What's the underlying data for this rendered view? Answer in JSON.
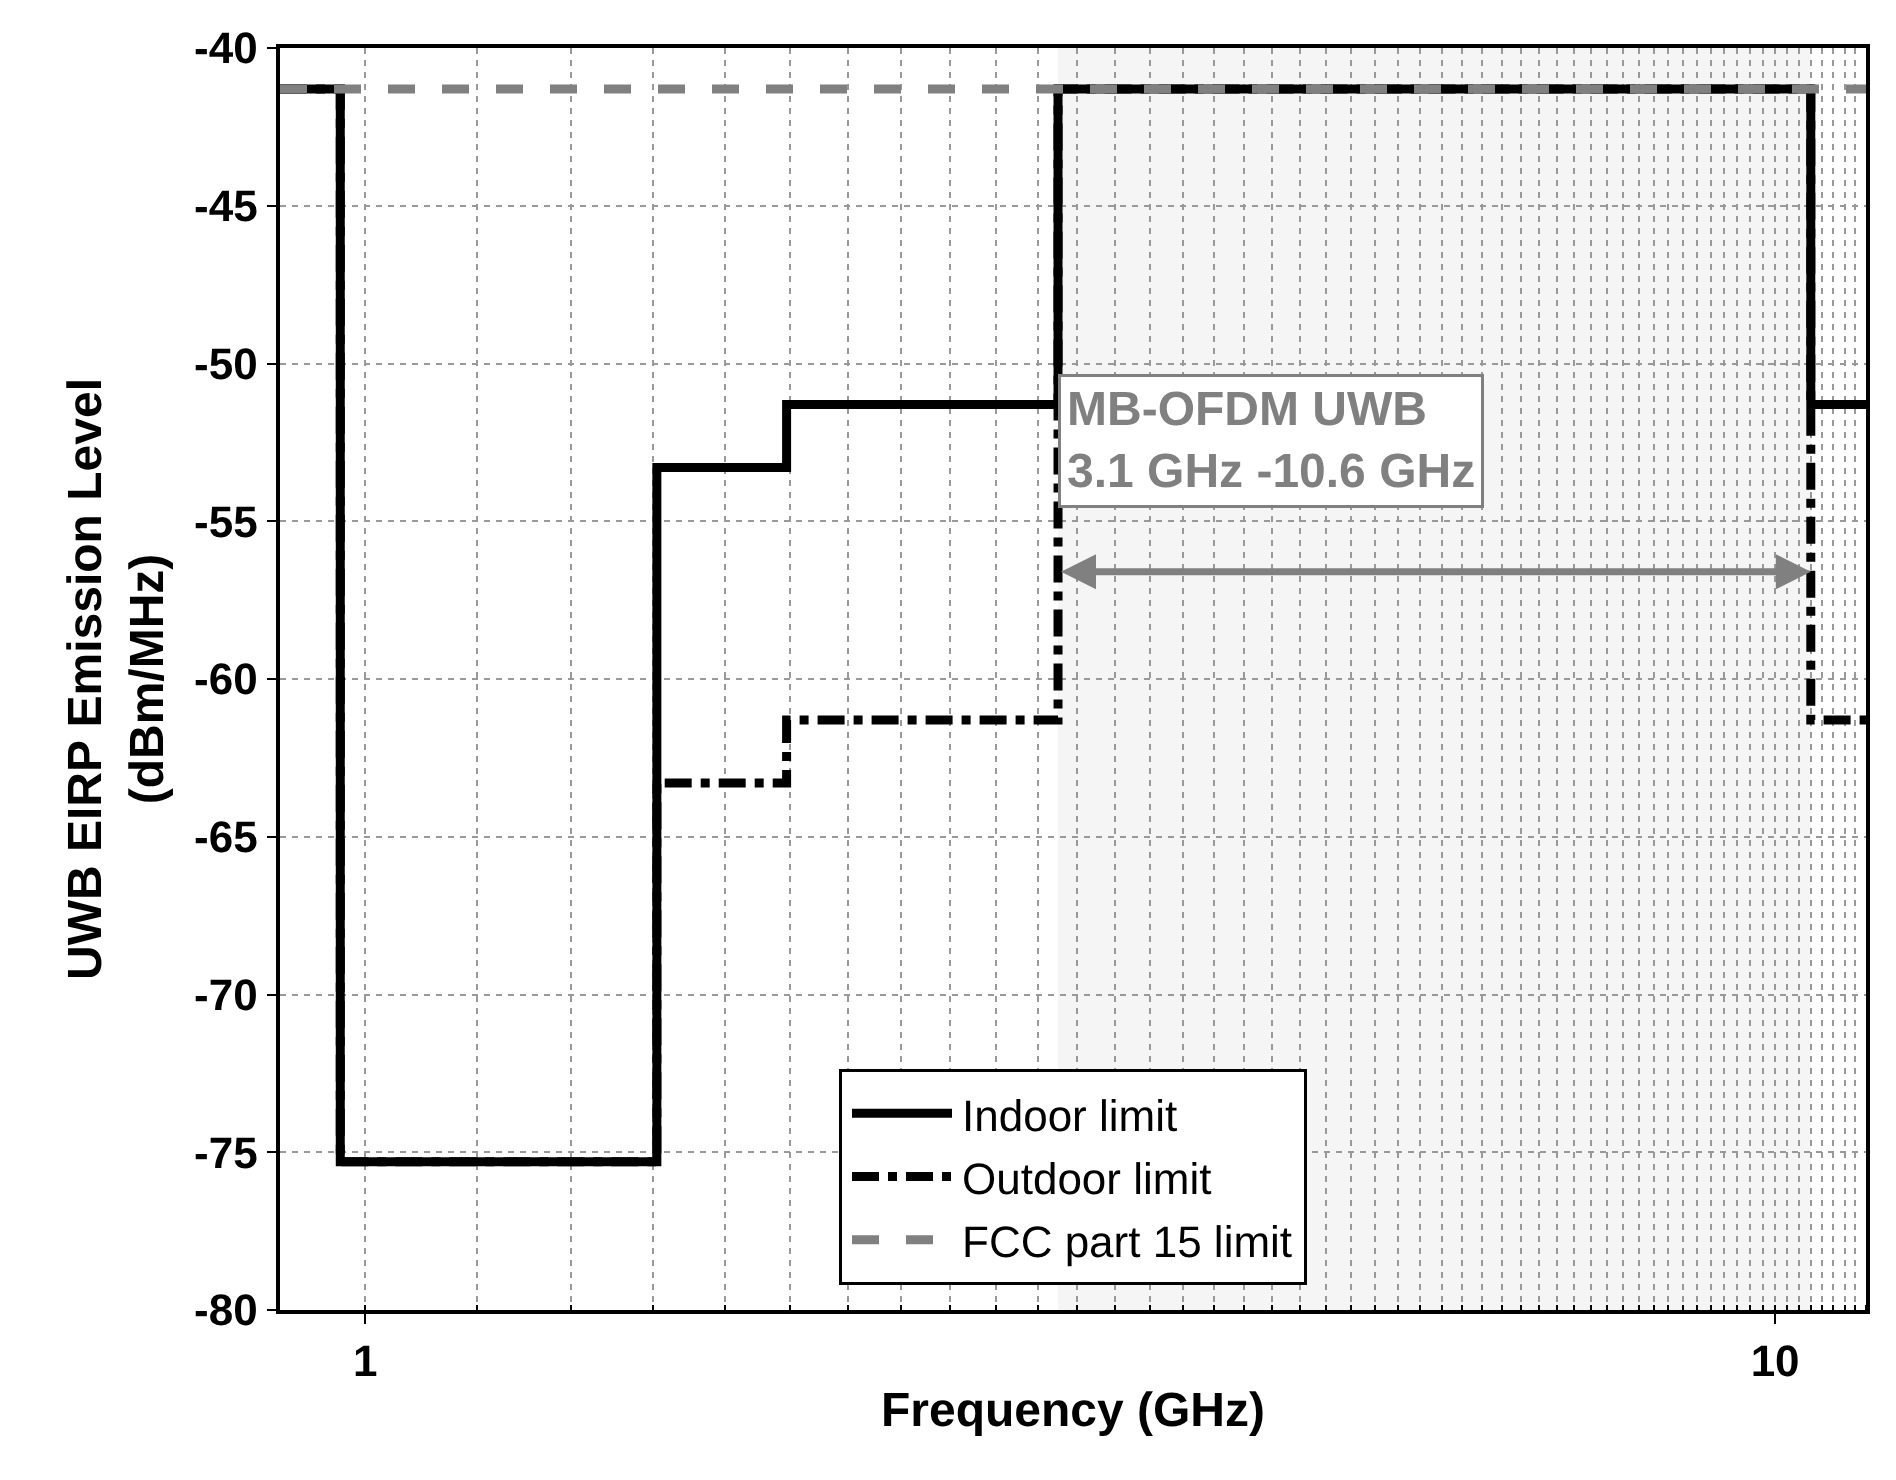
{
  "chart_data": {
    "type": "step",
    "xlabel": "Frequency (GHz)",
    "ylabel": "UWB EIRP Emission Level\n(dBm/MHz)",
    "log": "x",
    "xlim": [
      0.87,
      11.6
    ],
    "xticks": [
      1,
      10
    ],
    "ylim": [
      -80,
      -40
    ],
    "yticks": [
      -80,
      -75,
      -70,
      -65,
      -60,
      -55,
      -50,
      -45,
      -40
    ],
    "grid": true,
    "legend": "bottom",
    "marker": "none",
    "series": [
      {
        "name": "Indoor limit",
        "color": "#000000",
        "line_style": "solid",
        "x": [
          0.87,
          0.96,
          1.61,
          1.99,
          3.1,
          10.6,
          11.6
        ],
        "values": [
          -41.3,
          -75.3,
          -53.3,
          -51.3,
          -41.3,
          -51.3,
          -51.3
        ]
      },
      {
        "name": "Outdoor limit",
        "color": "#000000",
        "line_style": "dashdot",
        "x": [
          0.87,
          0.96,
          1.61,
          1.99,
          3.1,
          10.6,
          11.6
        ],
        "values": [
          -41.3,
          -75.3,
          -63.3,
          -61.3,
          -41.3,
          -61.3,
          -61.3
        ]
      },
      {
        "name": "FCC part 15 limit",
        "color": "#808080",
        "line_style": "dashed",
        "x": [
          0.87,
          11.6
        ],
        "values": [
          -41.3,
          -41.3
        ]
      }
    ],
    "bands": [
      {
        "axis": "x",
        "from": 3.1,
        "to": 10.6,
        "label": "MB-OFDM UWB\n3.1 GHz -10.6 GHz",
        "color": "#808080"
      }
    ]
  }
}
